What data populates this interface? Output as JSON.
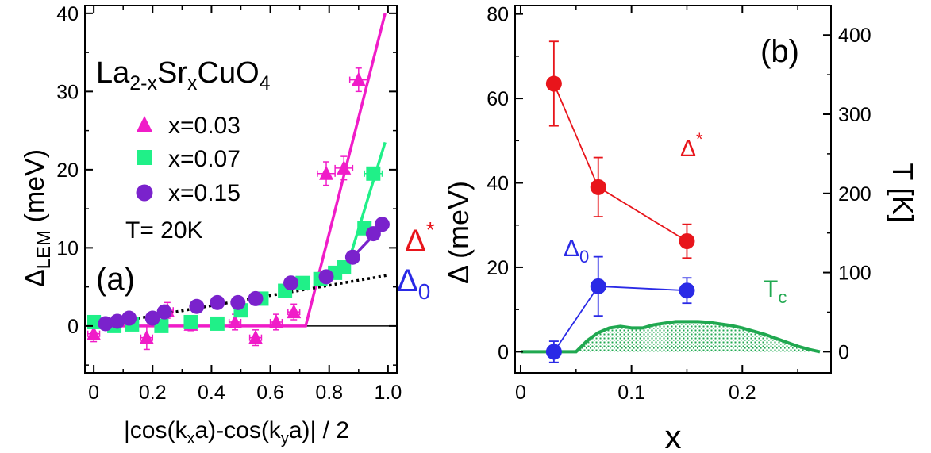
{
  "chart_data": [
    {
      "panel": "(a)",
      "type": "scatter",
      "title": "",
      "xlabel": "|cos(kxa)-cos(kya)| / 2",
      "ylabel": "ΔLEM (meV)",
      "xlim": [
        -0.03,
        1.03
      ],
      "ylim": [
        -6,
        41
      ],
      "xticks": [
        0,
        0.2,
        0.4,
        0.6,
        0.8,
        1.0
      ],
      "xtick_labels": [
        "0",
        "0.2",
        "0.4",
        "0.6",
        "0.8",
        "1.0"
      ],
      "yticks": [
        0,
        10,
        20,
        30,
        40
      ],
      "ytick_labels": [
        "0",
        "10",
        "20",
        "30",
        "40"
      ],
      "grid": false,
      "legend_position": "top-left",
      "annotations": {
        "compound": {
          "base1": "La",
          "sub1": "2-x",
          "base2": "Sr",
          "sub2": "x",
          "base3": "CuO",
          "sub3": "4"
        },
        "temperature": "T= 20K",
        "panel_label": "(a)",
        "delta_star": {
          "symbol": "Δ",
          "sup": "*"
        },
        "delta_zero": {
          "symbol": "Δ",
          "sub": "0"
        }
      },
      "series": [
        {
          "name": "x=0.03",
          "marker": "triangle",
          "color": "#f01cc8",
          "points": [
            [
              0.0,
              -1.0
            ],
            [
              0.18,
              -1.5
            ],
            [
              0.25,
              2.0
            ],
            [
              0.33,
              0.2
            ],
            [
              0.48,
              0.5
            ],
            [
              0.55,
              -1.5
            ],
            [
              0.62,
              0.5
            ],
            [
              0.68,
              1.8
            ],
            [
              0.79,
              19.5
            ],
            [
              0.85,
              20.2
            ],
            [
              0.9,
              31.5
            ]
          ],
          "yerr": [
            1.0,
            1.5,
            1.0,
            0.8,
            1.0,
            1.0,
            1.0,
            1.0,
            1.5,
            1.5,
            1.5
          ],
          "xerr": [
            0.02,
            0.02,
            0.02,
            0.02,
            0.02,
            0.02,
            0.02,
            0.02,
            0.03,
            0.03,
            0.03
          ]
        },
        {
          "name": "x=0.07",
          "marker": "square",
          "color": "#20f088",
          "points": [
            [
              0.0,
              0.5
            ],
            [
              0.07,
              0.0
            ],
            [
              0.13,
              0.2
            ],
            [
              0.23,
              0.0
            ],
            [
              0.33,
              0.5
            ],
            [
              0.42,
              0.3
            ],
            [
              0.5,
              2.0
            ],
            [
              0.57,
              3.5
            ],
            [
              0.65,
              4.5
            ],
            [
              0.71,
              5.5
            ],
            [
              0.77,
              6.0
            ],
            [
              0.82,
              6.8
            ],
            [
              0.85,
              7.5
            ],
            [
              0.92,
              12.5
            ],
            [
              0.95,
              19.5
            ]
          ],
          "yerr": [
            0.5,
            0.5,
            0.5,
            0.5,
            0.5,
            0.5,
            0.5,
            0.5,
            0.5,
            0.5,
            0.5,
            0.5,
            0.5,
            0.5,
            0.8
          ],
          "xerr": [
            0.015,
            0.015,
            0.015,
            0.015,
            0.015,
            0.015,
            0.015,
            0.015,
            0.015,
            0.015,
            0.015,
            0.015,
            0.015,
            0.02,
            0.03
          ]
        },
        {
          "name": "x=0.15",
          "marker": "circle",
          "color": "#7a22cc",
          "points": [
            [
              0.04,
              0.3
            ],
            [
              0.08,
              0.6
            ],
            [
              0.12,
              1.0
            ],
            [
              0.2,
              1.0
            ],
            [
              0.24,
              1.8
            ],
            [
              0.35,
              2.5
            ],
            [
              0.42,
              3.0
            ],
            [
              0.49,
              3.0
            ],
            [
              0.55,
              3.5
            ],
            [
              0.67,
              5.5
            ],
            [
              0.79,
              6.3
            ],
            [
              0.88,
              8.8
            ],
            [
              0.95,
              11.8
            ],
            [
              0.98,
              13.0
            ]
          ],
          "yerr": [
            0.5,
            0.5,
            0.5,
            0.5,
            0.5,
            0.5,
            0.5,
            0.5,
            0.5,
            0.5,
            0.5,
            0.5,
            0.5,
            0.5
          ],
          "xerr": [
            0.015,
            0.015,
            0.015,
            0.015,
            0.015,
            0.015,
            0.015,
            0.015,
            0.015,
            0.015,
            0.015,
            0.015,
            0.015,
            0.015
          ]
        }
      ],
      "fit_lines": [
        {
          "series": "x=0.03",
          "color": "#f01cc8",
          "style": "solid",
          "points": [
            [
              0.0,
              0.0
            ],
            [
              0.72,
              0.0
            ],
            [
              0.99,
              40.0
            ]
          ]
        },
        {
          "series": "x=0.07",
          "color": "#20f088",
          "style": "solid",
          "points": [
            [
              0.86,
              7.5
            ],
            [
              0.99,
              23.5
            ]
          ]
        },
        {
          "series": "x=0.15",
          "color": "#7a22cc",
          "style": "solid",
          "points": [
            [
              0.88,
              8.8
            ],
            [
              0.99,
              13.2
            ]
          ]
        },
        {
          "series": "linear",
          "color": "#000000",
          "style": "dotted",
          "points": [
            [
              0.0,
              0.0
            ],
            [
              1.0,
              6.5
            ]
          ]
        }
      ],
      "reference_line_y": 0
    },
    {
      "panel": "(b)",
      "type": "line",
      "title": "",
      "xlabel": "x",
      "ylabel": "Δ (meV)",
      "y2label": "T [K]",
      "xlim": [
        -0.005,
        0.28
      ],
      "ylim": [
        -5,
        82
      ],
      "y2lim": [
        -26.7,
        437.3
      ],
      "xticks": [
        0,
        0.1,
        0.2
      ],
      "xtick_labels": [
        "0",
        "0.1",
        "0.2"
      ],
      "yticks": [
        0,
        20,
        40,
        60,
        80
      ],
      "ytick_labels": [
        "0",
        "20",
        "40",
        "60",
        "80"
      ],
      "y2ticks": [
        0,
        100,
        200,
        300,
        400
      ],
      "y2tick_labels": [
        "0",
        "100",
        "200",
        "300",
        "400"
      ],
      "grid": false,
      "annotations": {
        "panel_label": "(b)",
        "delta_star": {
          "symbol": "Δ",
          "sup": "*"
        },
        "delta_zero": {
          "symbol": "Δ",
          "sub": "0"
        },
        "tc": {
          "symbol": "T",
          "sub": "c"
        }
      },
      "series": [
        {
          "name": "Δ*",
          "color": "#e8151b",
          "x": [
            0.03,
            0.07,
            0.15
          ],
          "y": [
            63.5,
            39.0,
            26.2
          ],
          "yerr": [
            10.0,
            7.0,
            4.0
          ]
        },
        {
          "name": "Δ0",
          "color": "#2a2ae6",
          "x": [
            0.03,
            0.07,
            0.15
          ],
          "y": [
            0.0,
            15.5,
            14.5
          ],
          "yerr": [
            2.5,
            7.0,
            3.0
          ]
        },
        {
          "name": "Tc",
          "color": "#20a850",
          "axis": "right",
          "fill": "dotted",
          "x": [
            0.0,
            0.05,
            0.06,
            0.07,
            0.08,
            0.09,
            0.1,
            0.11,
            0.12,
            0.13,
            0.14,
            0.15,
            0.16,
            0.17,
            0.18,
            0.19,
            0.2,
            0.21,
            0.22,
            0.23,
            0.24,
            0.25,
            0.26,
            0.27
          ],
          "y": [
            0,
            0,
            14,
            24,
            30,
            32,
            30,
            30,
            34,
            36,
            38,
            38,
            38,
            37,
            35,
            33,
            30,
            26,
            22,
            17,
            12,
            7,
            3,
            0
          ]
        }
      ]
    }
  ]
}
